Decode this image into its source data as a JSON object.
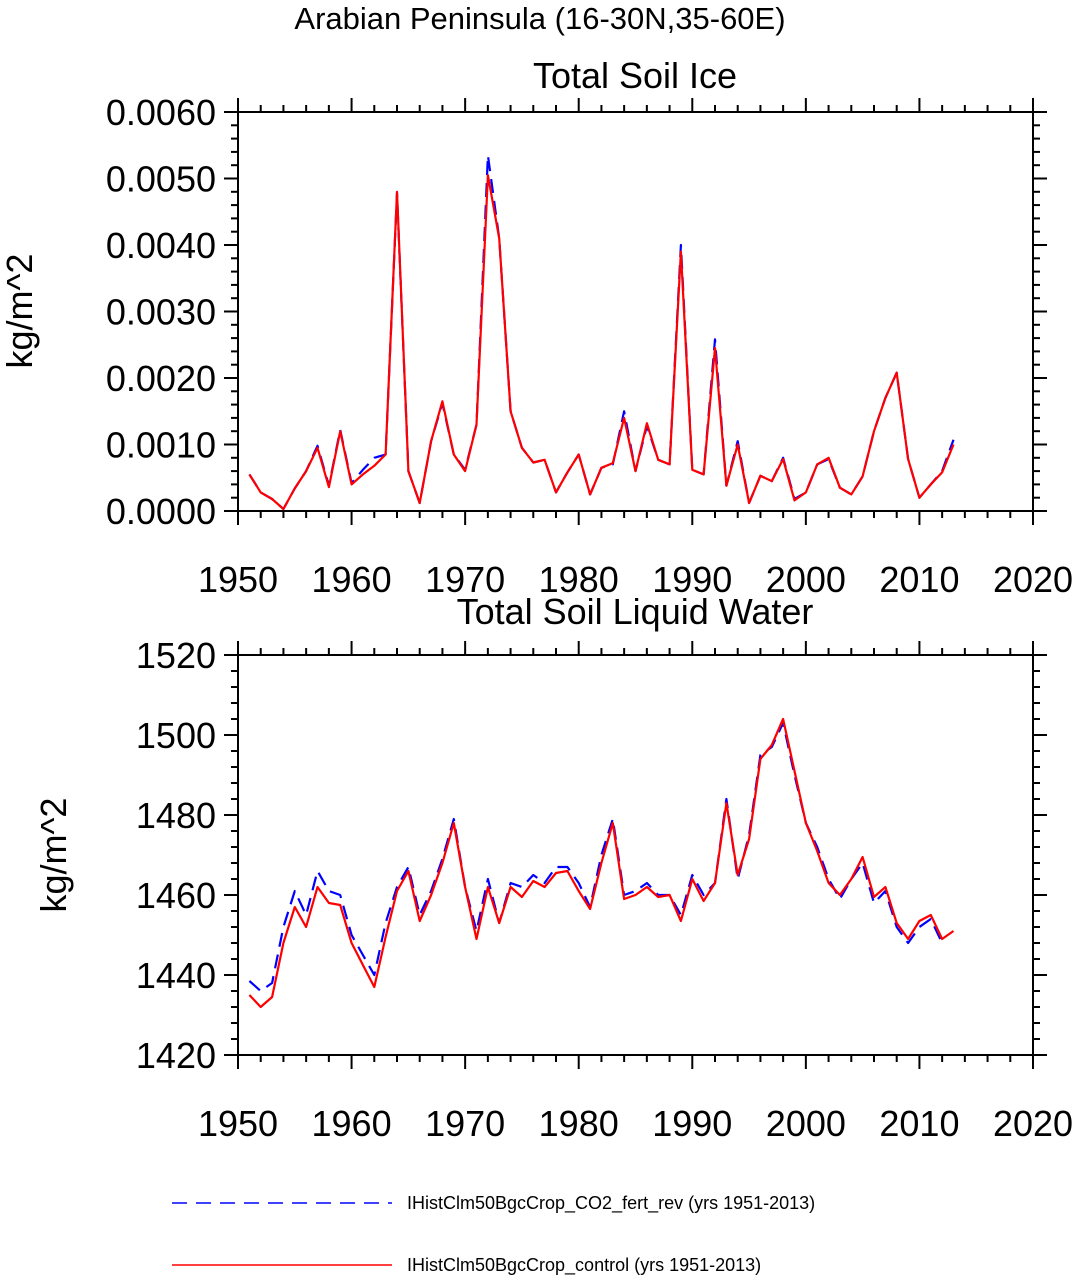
{
  "figure_title": "Arabian Peninsula (16-30N,35-60E)",
  "colors": {
    "series_dashed": "#0000ff",
    "series_solid": "#ff0000",
    "axis": "#000000"
  },
  "legend": {
    "placement": "bottom",
    "items": [
      {
        "label": "IHistClm50BgcCrop_CO2_fert_rev (yrs 1951-2013)",
        "style": "dashed",
        "color": "#0000ff"
      },
      {
        "label": "IHistClm50BgcCrop_control (yrs 1951-2013)",
        "style": "solid",
        "color": "#ff0000"
      }
    ]
  },
  "chart_data": [
    {
      "type": "line",
      "title": "Total Soil Ice",
      "xlabel": "",
      "ylabel": "kg/m^2",
      "xlim": [
        1950,
        2020
      ],
      "ylim": [
        0,
        0.006
      ],
      "xticks": [
        1950,
        1960,
        1970,
        1980,
        1990,
        2000,
        2010,
        2020
      ],
      "xtick_labels": [
        "1950",
        "1960",
        "1970",
        "1980",
        "1990",
        "2000",
        "2010",
        "2020"
      ],
      "yticks": [
        0,
        0.001,
        0.002,
        0.003,
        0.004,
        0.005,
        0.006
      ],
      "ytick_labels": [
        "0.0000",
        "0.0010",
        "0.0020",
        "0.0030",
        "0.0040",
        "0.0050",
        "0.0060"
      ],
      "x": [
        1951,
        1952,
        1953,
        1954,
        1955,
        1956,
        1957,
        1958,
        1959,
        1960,
        1961,
        1962,
        1963,
        1964,
        1965,
        1966,
        1967,
        1968,
        1969,
        1970,
        1971,
        1972,
        1973,
        1974,
        1975,
        1976,
        1977,
        1978,
        1979,
        1980,
        1981,
        1982,
        1983,
        1984,
        1985,
        1986,
        1987,
        1988,
        1989,
        1990,
        1991,
        1992,
        1993,
        1994,
        1995,
        1996,
        1997,
        1998,
        1999,
        2000,
        2001,
        2002,
        2003,
        2004,
        2005,
        2006,
        2007,
        2008,
        2009,
        2010,
        2011,
        2012,
        2013
      ],
      "series": [
        {
          "style": "dashed",
          "color": "#0000ff",
          "values": [
            0.00055,
            0.00028,
            0.00018,
            3e-05,
            0.00034,
            0.0006,
            0.00098,
            0.00038,
            0.00122,
            0.00042,
            0.00062,
            0.0008,
            0.00085,
            0.00478,
            0.0006,
            0.00012,
            0.00105,
            0.00162,
            0.00085,
            0.00062,
            0.0013,
            0.00535,
            0.0041,
            0.0015,
            0.00095,
            0.00073,
            0.00077,
            0.00028,
            0.00058,
            0.00085,
            0.00025,
            0.00065,
            0.0007,
            0.0015,
            0.0006,
            0.00128,
            0.00077,
            0.0007,
            0.004,
            0.00062,
            0.00055,
            0.00258,
            0.00038,
            0.00105,
            0.00012,
            0.00053,
            0.00045,
            0.0008,
            0.00018,
            0.00028,
            0.0007,
            0.00078,
            0.00035,
            0.00025,
            0.00052,
            0.0012,
            0.0017,
            0.00208,
            0.00078,
            0.0002,
            0.0004,
            0.0006,
            0.00107
          ]
        },
        {
          "style": "solid",
          "color": "#ff0000",
          "values": [
            0.00055,
            0.00028,
            0.00018,
            3e-05,
            0.00034,
            0.0006,
            0.00095,
            0.00036,
            0.0012,
            0.0004,
            0.00055,
            0.00068,
            0.00085,
            0.0048,
            0.0006,
            0.00012,
            0.00105,
            0.00165,
            0.00085,
            0.0006,
            0.0013,
            0.00505,
            0.0041,
            0.0015,
            0.00095,
            0.00073,
            0.00077,
            0.00028,
            0.00058,
            0.00085,
            0.00025,
            0.00065,
            0.00072,
            0.0014,
            0.0006,
            0.00132,
            0.00077,
            0.0007,
            0.0039,
            0.00062,
            0.00055,
            0.00245,
            0.00038,
            0.001,
            0.00012,
            0.00053,
            0.00045,
            0.00078,
            0.00016,
            0.00028,
            0.0007,
            0.0008,
            0.00035,
            0.00025,
            0.00052,
            0.0012,
            0.0017,
            0.00208,
            0.00078,
            0.0002,
            0.0004,
            0.00058,
            0.001
          ]
        }
      ]
    },
    {
      "type": "line",
      "title": "Total Soil Liquid Water",
      "xlabel": "",
      "ylabel": "kg/m^2",
      "xlim": [
        1950,
        2020
      ],
      "ylim": [
        1420,
        1520
      ],
      "xticks": [
        1950,
        1960,
        1970,
        1980,
        1990,
        2000,
        2010,
        2020
      ],
      "xtick_labels": [
        "1950",
        "1960",
        "1970",
        "1980",
        "1990",
        "2000",
        "2010",
        "2020"
      ],
      "yticks": [
        1420,
        1440,
        1460,
        1480,
        1500,
        1520
      ],
      "ytick_labels": [
        "1420",
        "1440",
        "1460",
        "1480",
        "1500",
        "1520"
      ],
      "x": [
        1951,
        1952,
        1953,
        1954,
        1955,
        1956,
        1957,
        1958,
        1959,
        1960,
        1961,
        1962,
        1963,
        1964,
        1965,
        1966,
        1967,
        1968,
        1969,
        1970,
        1971,
        1972,
        1973,
        1974,
        1975,
        1976,
        1977,
        1978,
        1979,
        1980,
        1981,
        1982,
        1983,
        1984,
        1985,
        1986,
        1987,
        1988,
        1989,
        1990,
        1991,
        1992,
        1993,
        1994,
        1995,
        1996,
        1997,
        1998,
        1999,
        2000,
        2001,
        2002,
        2003,
        2004,
        2005,
        2006,
        2007,
        2008,
        2009,
        2010,
        2011,
        2012,
        2013
      ],
      "series": [
        {
          "style": "dashed",
          "color": "#0000ff",
          "values": [
            1438.5,
            1436,
            1438,
            1452,
            1461,
            1455,
            1466,
            1461,
            1460,
            1450,
            1445,
            1440,
            1453,
            1462,
            1467,
            1455,
            1461,
            1469,
            1479,
            1462,
            1451,
            1464,
            1453,
            1463,
            1462,
            1465,
            1463,
            1467,
            1467,
            1463,
            1457,
            1470,
            1479,
            1460,
            1461,
            1463,
            1460,
            1460,
            1455,
            1465,
            1460,
            1463,
            1484,
            1464,
            1475,
            1495,
            1497,
            1503,
            1490,
            1478,
            1472,
            1464,
            1459,
            1464,
            1468,
            1458,
            1461,
            1452,
            1448,
            1452,
            1454,
            1448,
            null
          ]
        },
        {
          "style": "solid",
          "color": "#ff0000",
          "values": [
            1435,
            1432,
            1434.5,
            1448,
            1457,
            1452,
            1462,
            1458,
            1457.5,
            1448,
            1442.5,
            1437,
            1449.5,
            1461,
            1466,
            1453.5,
            1460,
            1468,
            1478,
            1462,
            1449,
            1462,
            1453,
            1462,
            1459.5,
            1463.5,
            1462,
            1465.5,
            1466,
            1461,
            1456.5,
            1468,
            1478,
            1459,
            1460,
            1462,
            1459.5,
            1460,
            1453.5,
            1464,
            1458.5,
            1463,
            1483,
            1465,
            1474,
            1494,
            1497.5,
            1504,
            1491,
            1478,
            1471,
            1463,
            1460,
            1464,
            1469.5,
            1459.5,
            1462,
            1453,
            1449,
            1453.5,
            1455,
            1449,
            1451
          ]
        }
      ]
    }
  ]
}
